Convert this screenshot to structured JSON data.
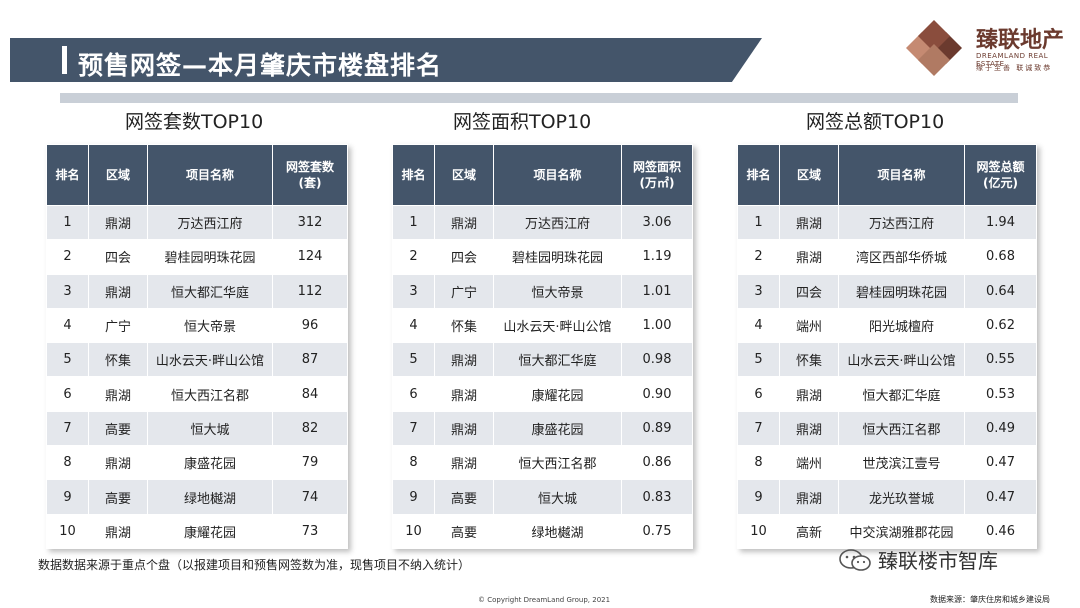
{
  "header": {
    "title": "预售网签—本月肇庆市楼盘排名",
    "logo_cn": "臻联地产",
    "logo_en": "DREAMLAND REAL ESTATE",
    "logo_slogan": "缘于至善 联诚致恭",
    "logo_colors": [
      "#c58a72",
      "#6b3a2e"
    ]
  },
  "tables": [
    {
      "title": "网签套数TOP10",
      "headers": [
        "排名",
        "区域",
        "项目名称",
        "网签套数\n(套)"
      ],
      "rows": [
        [
          "1",
          "鼎湖",
          "万达西江府",
          "312"
        ],
        [
          "2",
          "四会",
          "碧桂园明珠花园",
          "124"
        ],
        [
          "3",
          "鼎湖",
          "恒大都汇华庭",
          "112"
        ],
        [
          "4",
          "广宁",
          "恒大帝景",
          "96"
        ],
        [
          "5",
          "怀集",
          "山水云天·畔山公馆",
          "87"
        ],
        [
          "6",
          "鼎湖",
          "恒大西江名郡",
          "84"
        ],
        [
          "7",
          "高要",
          "恒大城",
          "82"
        ],
        [
          "8",
          "鼎湖",
          "康盛花园",
          "79"
        ],
        [
          "9",
          "高要",
          "绿地樾湖",
          "74"
        ],
        [
          "10",
          "鼎湖",
          "康耀花园",
          "73"
        ]
      ]
    },
    {
      "title": "网签面积TOP10",
      "headers": [
        "排名",
        "区域",
        "项目名称",
        "网签面积\n(万㎡)"
      ],
      "rows": [
        [
          "1",
          "鼎湖",
          "万达西江府",
          "3.06"
        ],
        [
          "2",
          "四会",
          "碧桂园明珠花园",
          "1.19"
        ],
        [
          "3",
          "广宁",
          "恒大帝景",
          "1.01"
        ],
        [
          "4",
          "怀集",
          "山水云天·畔山公馆",
          "1.00"
        ],
        [
          "5",
          "鼎湖",
          "恒大都汇华庭",
          "0.98"
        ],
        [
          "6",
          "鼎湖",
          "康耀花园",
          "0.90"
        ],
        [
          "7",
          "鼎湖",
          "康盛花园",
          "0.89"
        ],
        [
          "8",
          "鼎湖",
          "恒大西江名郡",
          "0.86"
        ],
        [
          "9",
          "高要",
          "恒大城",
          "0.83"
        ],
        [
          "10",
          "高要",
          "绿地樾湖",
          "0.75"
        ]
      ]
    },
    {
      "title": "网签总额TOP10",
      "headers": [
        "排名",
        "区域",
        "项目名称",
        "网签总额\n(亿元)"
      ],
      "rows": [
        [
          "1",
          "鼎湖",
          "万达西江府",
          "1.94"
        ],
        [
          "2",
          "鼎湖",
          "湾区西部华侨城",
          "0.68"
        ],
        [
          "3",
          "四会",
          "碧桂园明珠花园",
          "0.64"
        ],
        [
          "4",
          "端州",
          "阳光城檀府",
          "0.62"
        ],
        [
          "5",
          "怀集",
          "山水云天·畔山公馆",
          "0.55"
        ],
        [
          "6",
          "鼎湖",
          "恒大都汇华庭",
          "0.53"
        ],
        [
          "7",
          "鼎湖",
          "恒大西江名郡",
          "0.49"
        ],
        [
          "8",
          "端州",
          "世茂滨江壹号",
          "0.47"
        ],
        [
          "9",
          "鼎湖",
          "龙光玖誉城",
          "0.47"
        ],
        [
          "10",
          "高新",
          "中交滨湖雅郡花园",
          "0.46"
        ]
      ]
    }
  ],
  "footer": {
    "note": "数据数据来源于重点个盘（以报建项目和预售网签数为准，现售项目不纳入统计）",
    "copyright": "© Copyright  DreamLand Group, 2021",
    "source": "数据来源：肇庆住房和城乡建设局",
    "wechat_name": "臻联楼市智库"
  },
  "colors": {
    "header_bg": "#44556a",
    "row_shade": "#e4e7ec",
    "divider": "#c9cfd7"
  }
}
